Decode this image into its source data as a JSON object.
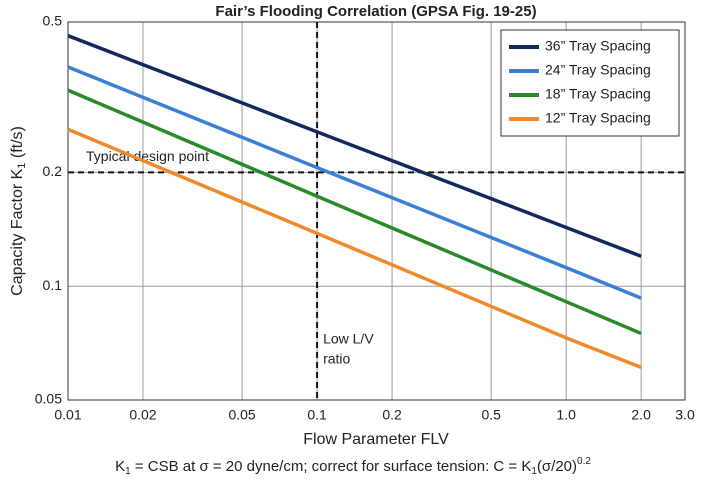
{
  "chart_data": {
    "type": "line",
    "title": "Fair’s Flooding Correlation (GPSA Fig. 19-25)",
    "xlabel": "Flow Parameter FLV",
    "ylabel": [
      "Capacity Factor K",
      "1",
      " (ft/s)"
    ],
    "footnote": [
      "K",
      "1",
      " = CSB at σ = 20 dyne/cm; correct for surface tension: C = K",
      "1",
      "(σ/20)",
      "0.2"
    ],
    "xscale": "log",
    "yscale": "log",
    "xlim": [
      0.01,
      3.0
    ],
    "ylim": [
      0.05,
      0.5
    ],
    "xticks": [
      0.01,
      0.02,
      0.05,
      0.1,
      0.2,
      0.5,
      {
        "value": 1,
        "label": "1.0"
      },
      {
        "value": 2,
        "label": "2.0"
      },
      {
        "value": 3,
        "label": "3.0"
      }
    ],
    "yticks": [
      0.05,
      0.1,
      0.2,
      0.5
    ],
    "grid": true,
    "legend": "top-right",
    "x": [
      0.01,
      0.1,
      1,
      2
    ],
    "series": [
      {
        "name": "36” Tray Spacing",
        "color": "#13285c",
        "values": [
          0.46,
          0.256,
          0.143,
          0.12
        ]
      },
      {
        "name": "24” Tray Spacing",
        "color": "#3a7fd5",
        "values": [
          0.38,
          0.206,
          0.112,
          0.093
        ]
      },
      {
        "name": "18” Tray Spacing",
        "color": "#2a8a2a",
        "values": [
          0.33,
          0.173,
          0.091,
          0.075
        ]
      },
      {
        "name": "12” Tray Spacing",
        "color": "#ef8a2c",
        "values": [
          0.26,
          0.138,
          0.073,
          0.061
        ]
      }
    ],
    "reference_lines": {
      "x": 0.1,
      "y": 0.2
    },
    "annotations": {
      "design_point": "Typical design point",
      "low_lv": [
        "Low L/V",
        "ratio"
      ]
    }
  }
}
